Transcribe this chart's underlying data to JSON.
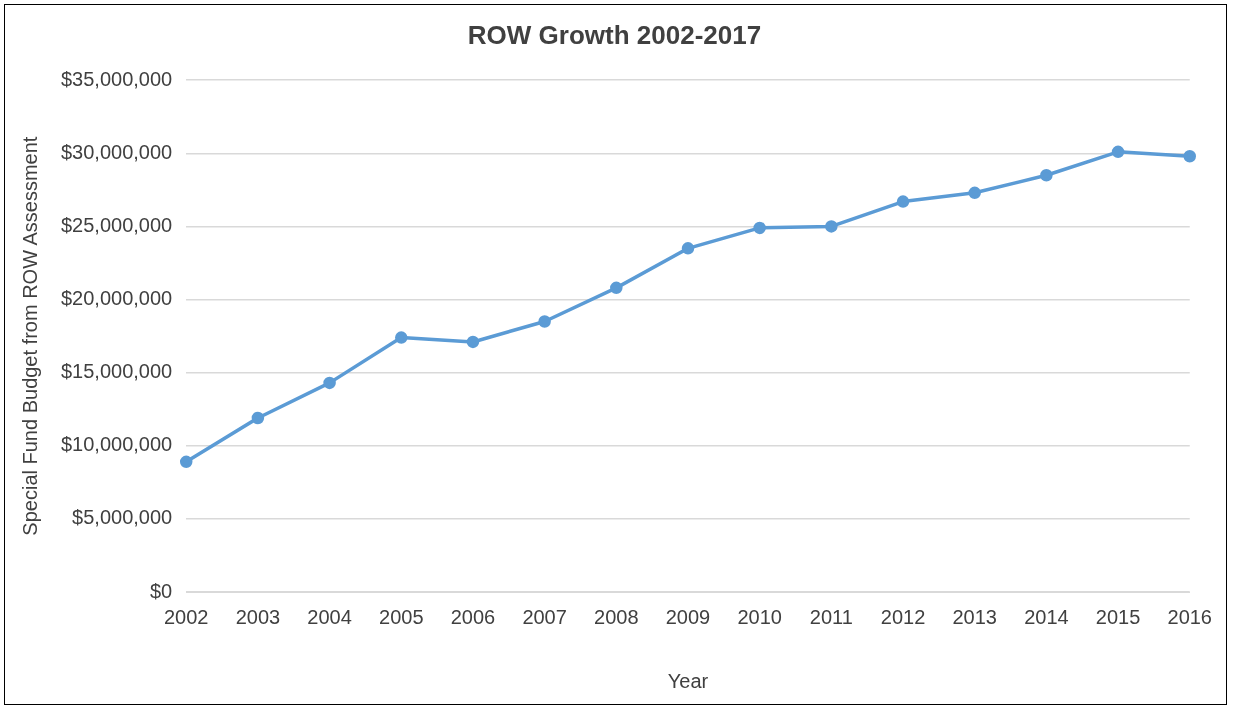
{
  "chart_data": {
    "type": "line",
    "title": "ROW Growth 2002-2017",
    "xlabel": "Year",
    "ylabel": "Special Fund Budget from ROW Assessment",
    "categories": [
      "2002",
      "2003",
      "2004",
      "2005",
      "2006",
      "2007",
      "2008",
      "2009",
      "2010",
      "2011",
      "2012",
      "2013",
      "2014",
      "2015",
      "2016"
    ],
    "series": [
      {
        "color": "#5b9bd5",
        "values": [
          8900000,
          11900000,
          14300000,
          17400000,
          17100000,
          18500000,
          20800000,
          23500000,
          24900000,
          25000000,
          26700000,
          27300000,
          28500000,
          30100000,
          29800000
        ]
      }
    ],
    "ylim": [
      0,
      35000000
    ],
    "yticks": [
      {
        "value": 0,
        "label": "$0"
      },
      {
        "value": 5000000,
        "label": "$5,000,000"
      },
      {
        "value": 10000000,
        "label": "$10,000,000"
      },
      {
        "value": 15000000,
        "label": "$15,000,000"
      },
      {
        "value": 20000000,
        "label": "$20,000,000"
      },
      {
        "value": 25000000,
        "label": "$25,000,000"
      },
      {
        "value": 30000000,
        "label": "$30,000,000"
      },
      {
        "value": 35000000,
        "label": "$35,000,000"
      }
    ],
    "grid": "y",
    "legend": false,
    "marker": "circle",
    "line_style": "solid"
  }
}
